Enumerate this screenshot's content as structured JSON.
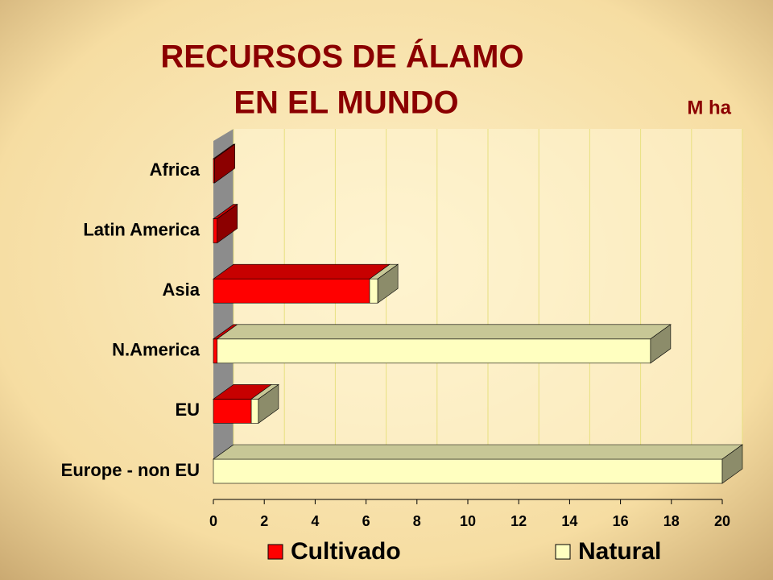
{
  "chart_data": {
    "type": "bar3d_stacked_horizontal",
    "title": [
      "RECURSOS DE ÁLAMO",
      "EN EL MUNDO"
    ],
    "unit_label": "M ha",
    "categories": [
      "Africa",
      "Latin America",
      "Asia",
      "N.America",
      "EU",
      "Europe - non EU"
    ],
    "series": [
      {
        "name": "Cultivado",
        "color": "#ff0000",
        "values": [
          0.05,
          0.15,
          6.14,
          0.15,
          1.49,
          0
        ]
      },
      {
        "name": "Natural",
        "color": "#ffffc0",
        "values": [
          0,
          0,
          0.32,
          17.03,
          0.28,
          20
        ]
      }
    ],
    "xlim": [
      0,
      20
    ],
    "xticks": [
      0,
      2,
      4,
      6,
      8,
      10,
      12,
      14,
      16,
      18,
      20
    ],
    "grid": true
  }
}
